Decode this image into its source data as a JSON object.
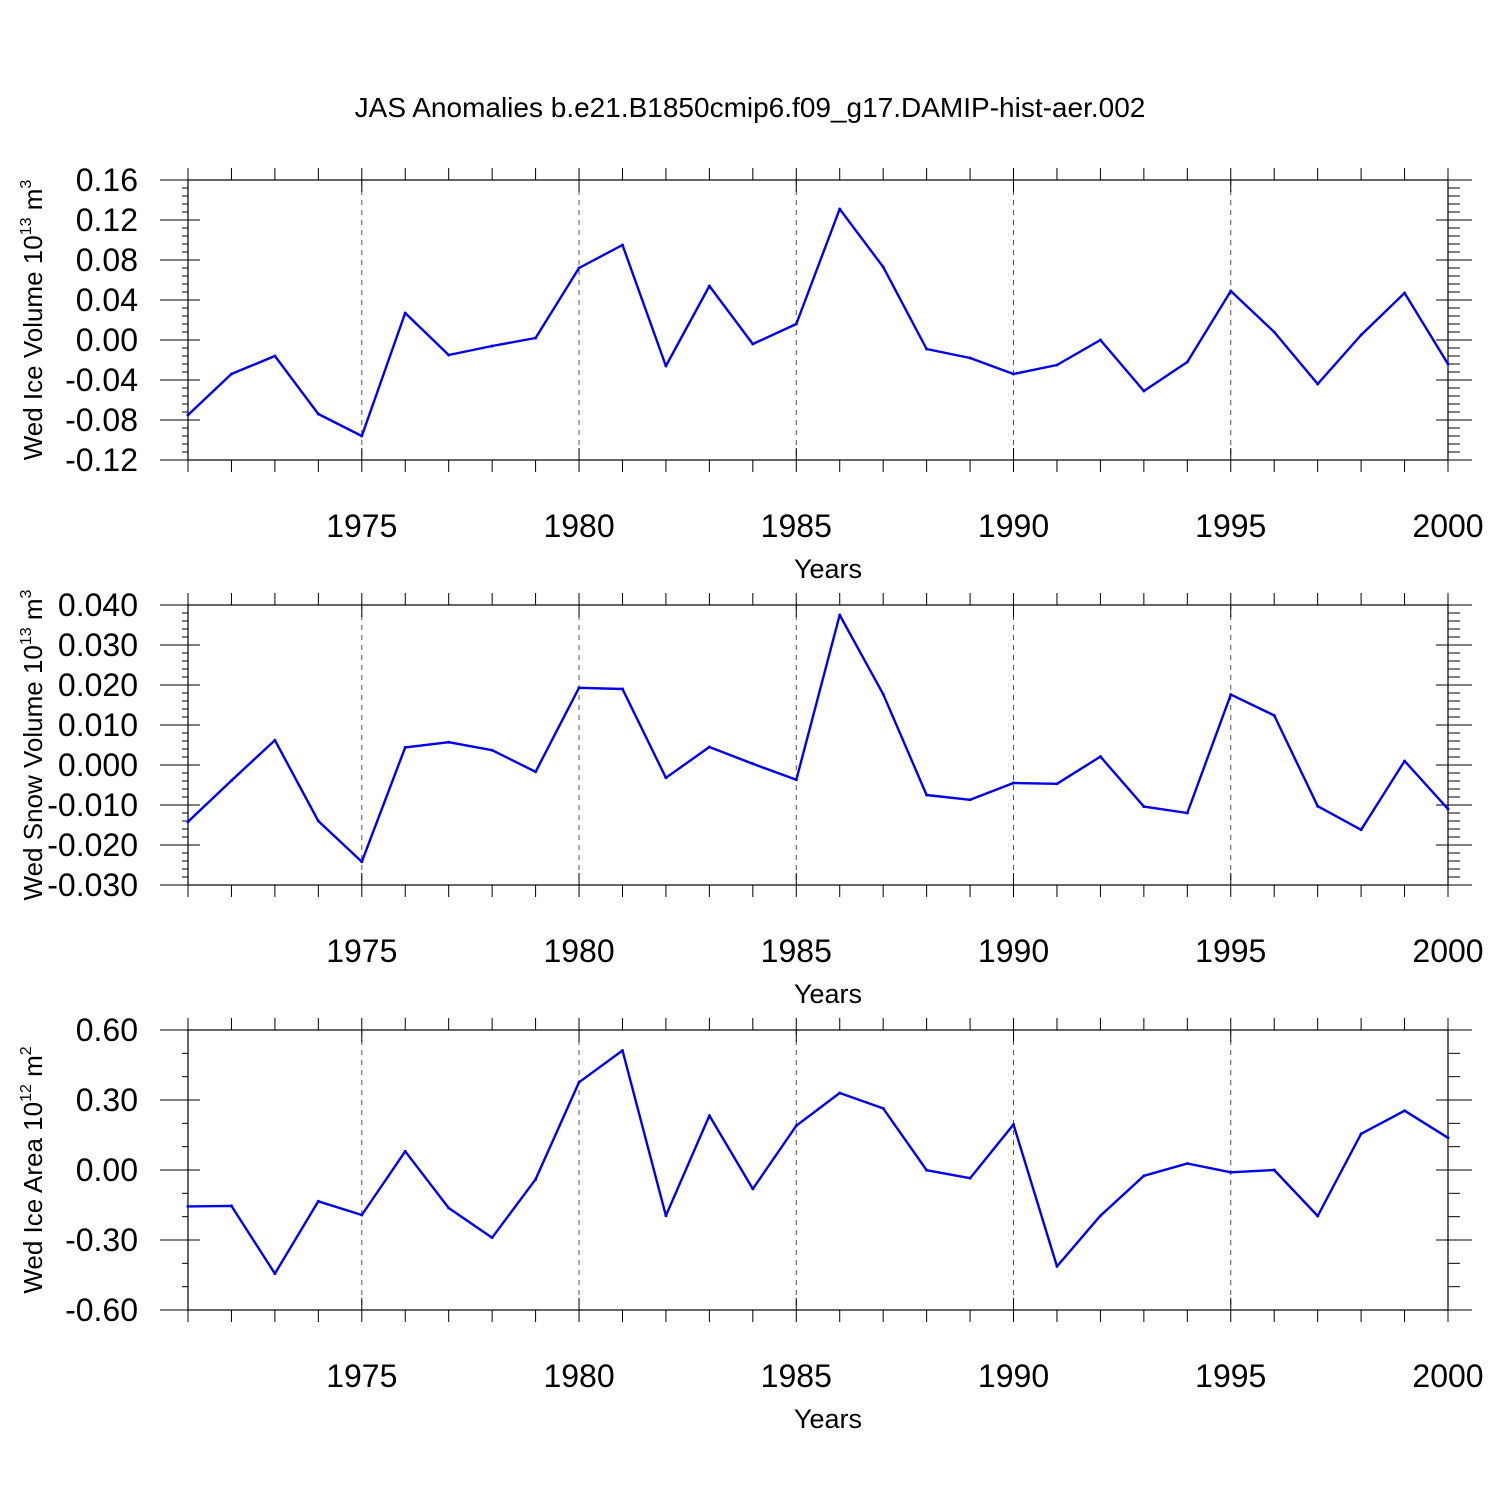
{
  "title": "JAS Anomalies b.e21.B1850cmip6.f09_g17.DAMIP-hist-aer.002",
  "colors": {
    "series": "#0000ee",
    "axis": "#000000",
    "grid": "#555555"
  },
  "chart_data": [
    {
      "type": "line",
      "ylabel_text": "Wed Ice Volume 10",
      "ylabel_exp": "13",
      "ylabel_unit": "m",
      "ylabel_unit_exp": "3",
      "xlabel": "Years",
      "xlim": [
        1971,
        2000
      ],
      "ylim": [
        -0.12,
        0.16
      ],
      "x_ticks": [
        1975,
        1980,
        1985,
        1990,
        1995,
        2000
      ],
      "x_tick_labels": [
        "1975",
        "1980",
        "1985",
        "1990",
        "1995",
        "2000"
      ],
      "y_ticks": [
        -0.12,
        -0.08,
        -0.04,
        0.0,
        0.04,
        0.08,
        0.12,
        0.16
      ],
      "y_tick_labels": [
        "-0.12",
        "-0.08",
        "-0.04",
        "0.00",
        "0.04",
        "0.08",
        "0.12",
        "0.16"
      ],
      "y_minor_step": 0.008,
      "grid_x": [
        1975,
        1980,
        1985,
        1990,
        1995
      ],
      "x": [
        1971,
        1972,
        1973,
        1974,
        1975,
        1976,
        1977,
        1978,
        1979,
        1980,
        1981,
        1982,
        1983,
        1984,
        1985,
        1986,
        1987,
        1988,
        1989,
        1990,
        1991,
        1992,
        1993,
        1994,
        1995,
        1996,
        1997,
        1998,
        1999,
        2000
      ],
      "values": [
        -0.075,
        -0.034,
        -0.016,
        -0.074,
        -0.096,
        0.027,
        -0.015,
        -0.006,
        0.002,
        0.072,
        0.095,
        -0.026,
        0.054,
        -0.004,
        0.016,
        0.131,
        0.073,
        -0.009,
        -0.018,
        -0.034,
        -0.025,
        0.0,
        -0.051,
        -0.022,
        0.049,
        0.008,
        -0.044,
        0.005,
        0.047,
        -0.024
      ]
    },
    {
      "type": "line",
      "ylabel_text": "Wed Snow Volume 10",
      "ylabel_exp": "13",
      "ylabel_unit": "m",
      "ylabel_unit_exp": "3",
      "xlabel": "Years",
      "xlim": [
        1971,
        2000
      ],
      "ylim": [
        -0.03,
        0.04
      ],
      "x_ticks": [
        1975,
        1980,
        1985,
        1990,
        1995,
        2000
      ],
      "x_tick_labels": [
        "1975",
        "1980",
        "1985",
        "1990",
        "1995",
        "2000"
      ],
      "y_ticks": [
        -0.03,
        -0.02,
        -0.01,
        0.0,
        0.01,
        0.02,
        0.03,
        0.04
      ],
      "y_tick_labels": [
        "-0.030",
        "-0.020",
        "-0.010",
        "0.000",
        "0.010",
        "0.020",
        "0.030",
        "0.040"
      ],
      "y_minor_step": 0.002,
      "grid_x": [
        1975,
        1980,
        1985,
        1990,
        1995
      ],
      "x": [
        1971,
        1972,
        1973,
        1974,
        1975,
        1976,
        1977,
        1978,
        1979,
        1980,
        1981,
        1982,
        1983,
        1984,
        1985,
        1986,
        1987,
        1988,
        1989,
        1990,
        1991,
        1992,
        1993,
        1994,
        1995,
        1996,
        1997,
        1998,
        1999,
        2000
      ],
      "values": [
        -0.0142,
        -0.0039,
        0.0062,
        -0.014,
        -0.0242,
        0.0044,
        0.0057,
        0.0037,
        -0.0017,
        0.0193,
        0.019,
        -0.0032,
        0.0045,
        0.0003,
        -0.0037,
        0.0375,
        0.0177,
        -0.0075,
        -0.0087,
        -0.0045,
        -0.0047,
        0.0021,
        -0.0104,
        -0.012,
        0.0176,
        0.0124,
        -0.0103,
        -0.0162,
        0.001,
        -0.011
      ]
    },
    {
      "type": "line",
      "ylabel_text": "Wed Ice Area 10",
      "ylabel_exp": "12",
      "ylabel_unit": "m",
      "ylabel_unit_exp": "2",
      "xlabel": "Years",
      "xlim": [
        1971,
        2000
      ],
      "ylim": [
        -0.6,
        0.6
      ],
      "x_ticks": [
        1975,
        1980,
        1985,
        1990,
        1995,
        2000
      ],
      "x_tick_labels": [
        "1975",
        "1980",
        "1985",
        "1990",
        "1995",
        "2000"
      ],
      "y_ticks": [
        -0.6,
        -0.3,
        0.0,
        0.3,
        0.6
      ],
      "y_tick_labels": [
        "-0.60",
        "-0.30",
        "0.00",
        "0.30",
        "0.60"
      ],
      "y_minor_step": 0.1,
      "grid_x": [
        1975,
        1980,
        1985,
        1990,
        1995
      ],
      "x": [
        1971,
        1972,
        1973,
        1974,
        1975,
        1976,
        1977,
        1978,
        1979,
        1980,
        1981,
        1982,
        1983,
        1984,
        1985,
        1986,
        1987,
        1988,
        1989,
        1990,
        1991,
        1992,
        1993,
        1994,
        1995,
        1996,
        1997,
        1998,
        1999,
        2000
      ],
      "values": [
        -0.156,
        -0.154,
        -0.444,
        -0.134,
        -0.193,
        0.08,
        -0.163,
        -0.29,
        -0.04,
        0.376,
        0.512,
        -0.196,
        0.233,
        -0.081,
        0.19,
        0.33,
        0.264,
        -0.001,
        -0.035,
        0.195,
        -0.413,
        -0.196,
        -0.025,
        0.028,
        -0.01,
        0.0,
        -0.197,
        0.155,
        0.254,
        0.138
      ]
    }
  ]
}
